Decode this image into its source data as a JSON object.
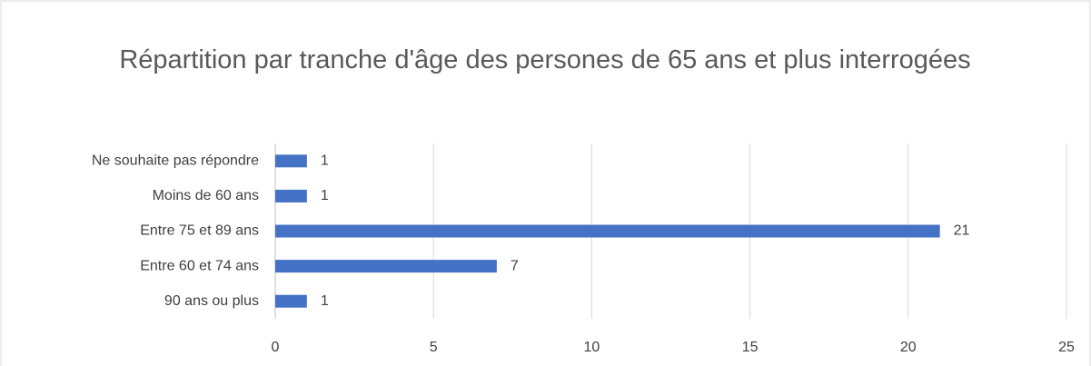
{
  "chart_data": {
    "type": "bar",
    "orientation": "horizontal",
    "title": "Répartition par tranche d'âge des persones de 65 ans et plus interrogées",
    "categories": [
      "Ne souhaite pas répondre",
      "Moins de 60 ans",
      "Entre 75 et 89 ans",
      "Entre 60 et 74 ans",
      "90 ans ou plus"
    ],
    "values": [
      1,
      1,
      21,
      7,
      1
    ],
    "color": "#4472c4",
    "xlim": [
      0,
      25
    ],
    "xticks": [
      0,
      5,
      10,
      15,
      20,
      25
    ],
    "grid": true
  }
}
